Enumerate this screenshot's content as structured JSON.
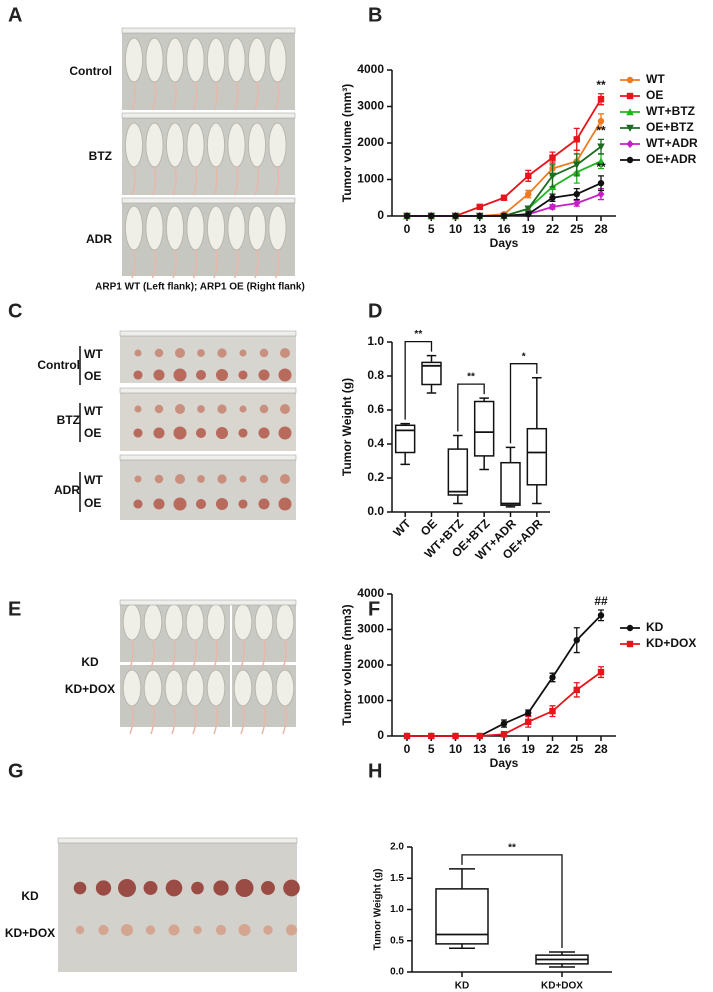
{
  "panel_letters": [
    "A",
    "B",
    "C",
    "D",
    "E",
    "F",
    "G",
    "H"
  ],
  "photo_a": {
    "rows": [
      "Control",
      "BTZ",
      "ADR"
    ],
    "caption": "ARP1 WT (Left flank); ARP1 OE (Right flank)"
  },
  "photo_c": {
    "groups": [
      "Control",
      "BTZ",
      "ADR"
    ],
    "sublabels": [
      "WT",
      "OE"
    ]
  },
  "photo_e": {
    "rows": [
      "KD",
      "KD+DOX"
    ]
  },
  "photo_g": {
    "rows": [
      "KD",
      "KD+DOX"
    ]
  },
  "chart_data": [
    {
      "type": "line",
      "xlabel": "Days",
      "ylabel": "Tumor volume (mm³)",
      "categories": [
        0,
        5,
        10,
        13,
        16,
        19,
        22,
        25,
        28
      ],
      "ylim": [
        0,
        4000
      ],
      "yticks": [
        0,
        1000,
        2000,
        3000,
        4000
      ],
      "series": [
        {
          "name": "WT",
          "color": "#f07a20",
          "marker": "circle",
          "values": [
            0,
            0,
            0,
            0,
            50,
            600,
            1300,
            1500,
            2600
          ],
          "errors": [
            0,
            0,
            0,
            0,
            30,
            100,
            200,
            300,
            200
          ]
        },
        {
          "name": "OE",
          "color": "#e8141b",
          "marker": "square",
          "values": [
            0,
            0,
            0,
            250,
            500,
            1100,
            1600,
            2100,
            3200
          ],
          "errors": [
            0,
            0,
            0,
            40,
            60,
            150,
            150,
            300,
            150
          ],
          "end_label": "**"
        },
        {
          "name": "WT+BTZ",
          "color": "#22b523",
          "marker": "triangle-up",
          "values": [
            0,
            0,
            0,
            0,
            0,
            200,
            800,
            1200,
            1500
          ],
          "errors": [
            0,
            0,
            0,
            0,
            0,
            60,
            300,
            300,
            200
          ]
        },
        {
          "name": "OE+BTZ",
          "color": "#1d6b22",
          "marker": "triangle-down",
          "values": [
            0,
            0,
            0,
            0,
            0,
            200,
            1100,
            1400,
            1900
          ],
          "errors": [
            0,
            0,
            0,
            0,
            0,
            60,
            300,
            300,
            200
          ],
          "end_label": "**"
        },
        {
          "name": "WT+ADR",
          "color": "#c81ec8",
          "marker": "diamond",
          "values": [
            0,
            0,
            0,
            0,
            0,
            50,
            250,
            350,
            600
          ],
          "errors": [
            0,
            0,
            0,
            0,
            0,
            20,
            60,
            80,
            150
          ]
        },
        {
          "name": "OE+ADR",
          "color": "#111111",
          "marker": "circle",
          "values": [
            0,
            0,
            0,
            0,
            0,
            50,
            500,
            600,
            900
          ],
          "errors": [
            0,
            0,
            0,
            0,
            0,
            20,
            100,
            150,
            200
          ],
          "end_label": "**"
        }
      ]
    },
    {
      "type": "box",
      "ylabel": "Tumor Weight (g)",
      "categories": [
        "WT",
        "OE",
        "WT+BTZ",
        "OE+BTZ",
        "WT+ADR",
        "OE+ADR"
      ],
      "ylim": [
        0,
        1
      ],
      "yticks": [
        {
          "value": 0,
          "label": "0.0"
        },
        0.2,
        0.4,
        0.6,
        0.8,
        {
          "value": 1,
          "label": "1.0"
        }
      ],
      "boxes": [
        [
          0.28,
          0.35,
          0.48,
          0.51,
          0.52
        ],
        [
          0.7,
          0.75,
          0.86,
          0.88,
          0.92
        ],
        [
          0.05,
          0.1,
          0.12,
          0.37,
          0.45
        ],
        [
          0.25,
          0.33,
          0.47,
          0.65,
          0.67
        ],
        [
          0.03,
          0.04,
          0.05,
          0.29,
          0.38
        ],
        [
          0.05,
          0.16,
          0.35,
          0.49,
          0.79
        ]
      ],
      "comparisons": [
        {
          "groups": [
            "WT",
            "OE"
          ],
          "label": "**"
        },
        {
          "groups": [
            "WT+BTZ",
            "OE+BTZ"
          ],
          "label": "**"
        },
        {
          "groups": [
            "WT+ADR",
            "OE+ADR"
          ],
          "label": "*"
        }
      ]
    },
    {
      "type": "line",
      "xlabel": "Days",
      "ylabel": "Tumor volume (mm3)",
      "categories": [
        0,
        5,
        10,
        13,
        16,
        19,
        22,
        25,
        28
      ],
      "ylim": [
        0,
        4000
      ],
      "yticks": [
        0,
        1000,
        2000,
        3000,
        4000
      ],
      "series": [
        {
          "name": "KD",
          "color": "#111111",
          "marker": "circle",
          "values": [
            0,
            0,
            0,
            0,
            350,
            650,
            1650,
            2700,
            3400
          ],
          "errors": [
            0,
            0,
            0,
            0,
            100,
            80,
            120,
            350,
            150
          ],
          "end_label": "##"
        },
        {
          "name": "KD+DOX",
          "color": "#e8141b",
          "marker": "square",
          "values": [
            0,
            0,
            0,
            0,
            50,
            400,
            700,
            1300,
            1800
          ],
          "errors": [
            0,
            0,
            0,
            0,
            20,
            150,
            150,
            200,
            150
          ]
        }
      ]
    },
    {
      "type": "box",
      "ylabel": "Tumor Weight (g)",
      "categories": [
        "KD",
        "KD+DOX"
      ],
      "ylim": [
        0,
        2
      ],
      "yticks": [
        {
          "value": 0,
          "label": "0.0"
        },
        0.5,
        {
          "value": 1,
          "label": "1.0"
        },
        1.5,
        {
          "value": 2,
          "label": "2.0"
        }
      ],
      "boxes": [
        [
          0.38,
          0.45,
          0.6,
          1.33,
          1.65
        ],
        [
          0.08,
          0.13,
          0.2,
          0.27,
          0.32
        ]
      ],
      "comparisons": [
        {
          "groups": [
            "KD",
            "KD+DOX"
          ],
          "label": "**"
        }
      ]
    }
  ]
}
